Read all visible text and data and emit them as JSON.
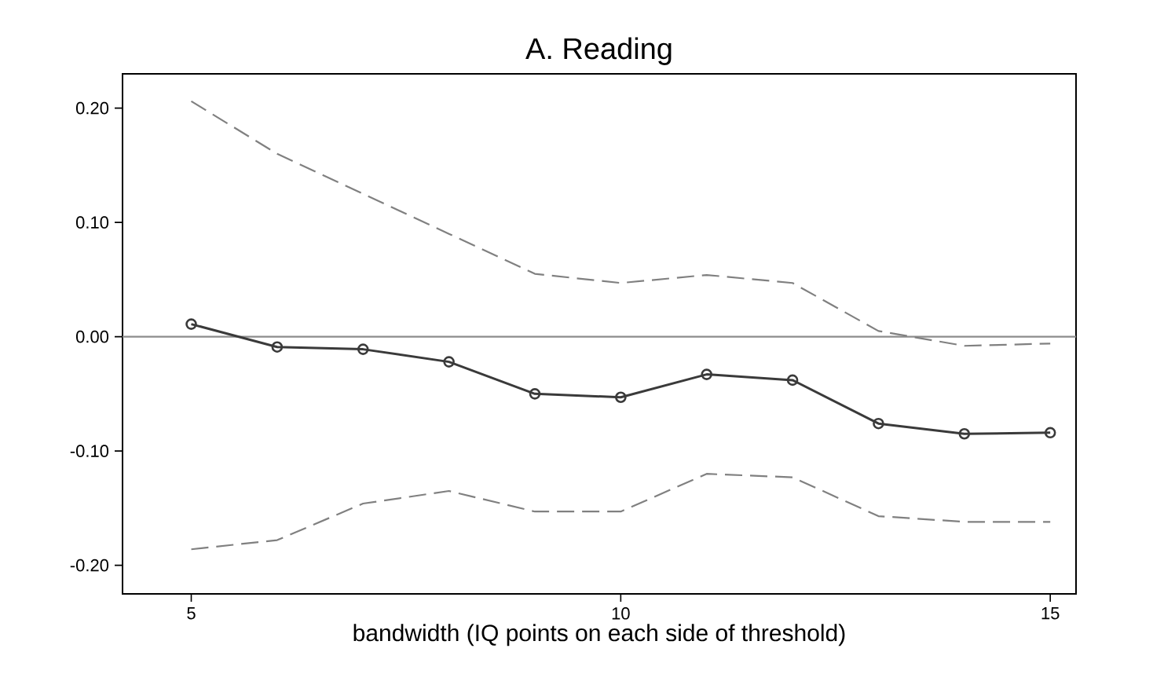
{
  "chart_data": {
    "type": "line",
    "title": "A. Reading",
    "xlabel": "bandwidth (IQ points on each side of threshold)",
    "x": [
      5,
      6,
      7,
      8,
      9,
      10,
      11,
      12,
      13,
      14,
      15
    ],
    "series": [
      {
        "color": "#3a3a3a",
        "marker": "circle",
        "line_style": "solid",
        "values": [
          0.011,
          -0.009,
          -0.011,
          -0.022,
          -0.05,
          -0.053,
          -0.033,
          -0.038,
          -0.076,
          -0.085,
          -0.084
        ]
      },
      {
        "color": "#808080",
        "marker": "none",
        "line_style": "dashed",
        "values": [
          0.206,
          0.16,
          0.125,
          0.09,
          0.055,
          0.047,
          0.054,
          0.047,
          0.005,
          -0.008,
          -0.006
        ]
      },
      {
        "color": "#808080",
        "marker": "none",
        "line_style": "dashed",
        "values": [
          -0.186,
          -0.178,
          -0.146,
          -0.135,
          -0.153,
          -0.153,
          -0.12,
          -0.123,
          -0.157,
          -0.162,
          -0.162
        ]
      }
    ],
    "xlim": [
      4.2,
      15.3
    ],
    "ylim": [
      -0.225,
      0.23
    ],
    "xticks": [
      5,
      10,
      15
    ],
    "yticks": [
      {
        "value": -0.2,
        "label": "-0.20"
      },
      {
        "value": -0.1,
        "label": "-0.10"
      },
      {
        "value": 0,
        "label": "0.00"
      },
      {
        "value": 0.1,
        "label": "0.10"
      },
      {
        "value": 0.2,
        "label": "0.20"
      }
    ],
    "ref_lines": [
      {
        "axis": "y",
        "value": 0,
        "color": "#8c8c8c"
      }
    ]
  }
}
